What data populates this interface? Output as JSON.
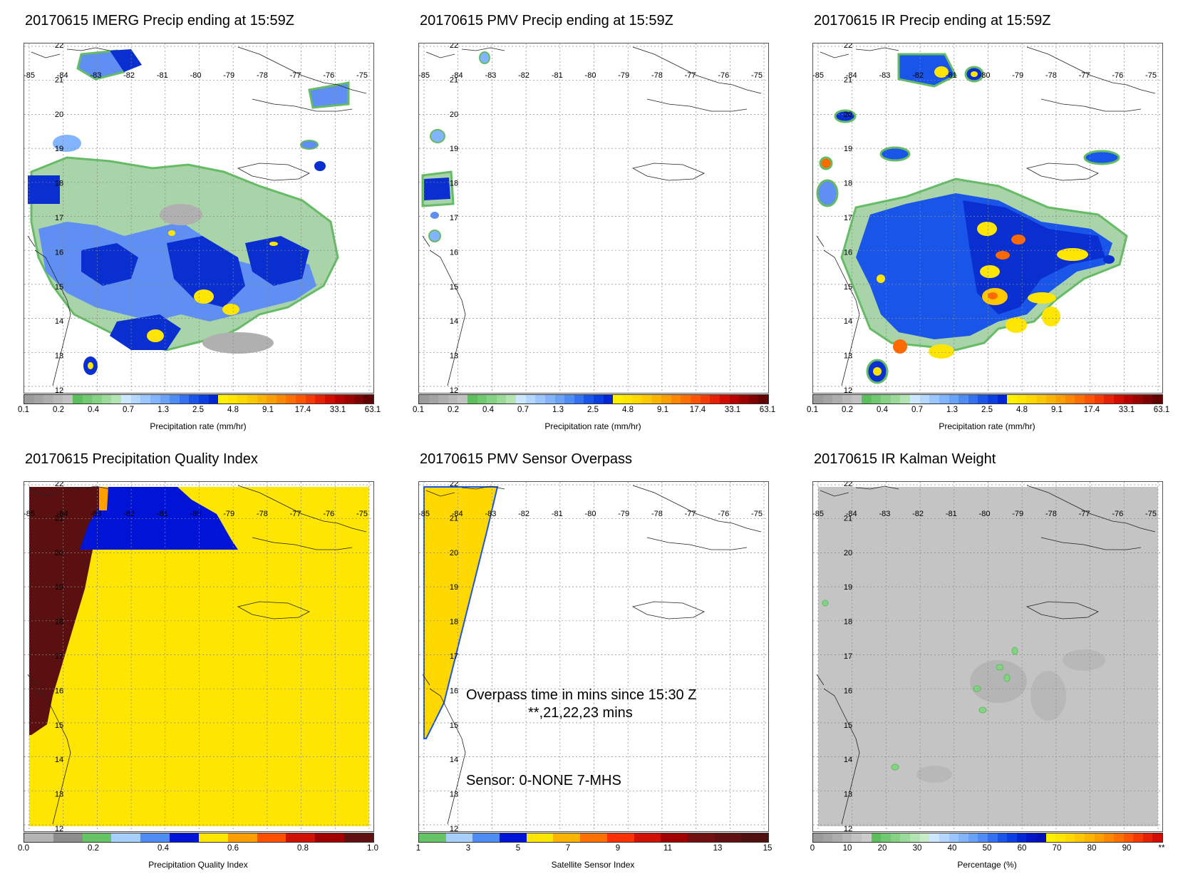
{
  "panels": [
    {
      "title": "20170615 IMERG Precip ending at 15:59Z",
      "colorbar_label": "Precipitation rate (mm/hr)",
      "ticks": [
        "0.1",
        "0.2",
        "0.4",
        "0.7",
        "1.3",
        "2.5",
        "4.8",
        "9.1",
        "17.4",
        "33.1",
        "63.1"
      ]
    },
    {
      "title": "20170615 PMV Precip ending at 15:59Z",
      "colorbar_label": "Precipitation rate (mm/hr)",
      "ticks": [
        "0.1",
        "0.2",
        "0.4",
        "0.7",
        "1.3",
        "2.5",
        "4.8",
        "9.1",
        "17.4",
        "33.1",
        "63.1"
      ]
    },
    {
      "title": "20170615 IR Precip ending at 15:59Z",
      "colorbar_label": "Precipitation rate (mm/hr)",
      "ticks": [
        "0.1",
        "0.2",
        "0.4",
        "0.7",
        "1.3",
        "2.5",
        "4.8",
        "9.1",
        "17.4",
        "33.1",
        "63.1"
      ]
    },
    {
      "title": "20170615 Precipitation Quality Index",
      "colorbar_label": "Precipitation Quality Index",
      "ticks": [
        "0.0",
        "0.2",
        "0.4",
        "0.6",
        "0.8",
        "1.0"
      ]
    },
    {
      "title": "20170615 PMV Sensor Overpass",
      "colorbar_label": "Satellite Sensor Index",
      "ticks": [
        "1",
        "3",
        "5",
        "7",
        "9",
        "11",
        "13",
        "15"
      ],
      "annotation_line1": "Overpass time in mins since 15:30 Z",
      "annotation_line2": "**,21,22,23 mins",
      "annotation_sensor": "Sensor:   0-NONE  7-MHS"
    },
    {
      "title": "20170615 IR Kalman Weight",
      "colorbar_label": "Percentage (%)",
      "ticks": [
        "0",
        "10",
        "20",
        "30",
        "40",
        "50",
        "60",
        "70",
        "80",
        "90",
        "**"
      ]
    }
  ],
  "axes": {
    "lon_labels": [
      "-85",
      "-84",
      "-83",
      "-82",
      "-81",
      "-80",
      "-79",
      "-78",
      "-77",
      "-76",
      "-75"
    ],
    "lat_labels": [
      "22",
      "21",
      "20",
      "19",
      "18",
      "17",
      "16",
      "15",
      "14",
      "13",
      "12"
    ]
  },
  "colorbars": {
    "precip": [
      "#9b9b9b",
      "#a3a3a3",
      "#adadad",
      "#b8b8b8",
      "#c2c2c2",
      "#5cbf5c",
      "#70c870",
      "#86d186",
      "#9cda9c",
      "#b4e3b4",
      "#cfe6ff",
      "#b5d6ff",
      "#9cc6ff",
      "#82b4ff",
      "#6aa2fb",
      "#4f8cf6",
      "#3470f0",
      "#1a55ea",
      "#0a3ee2",
      "#0025d4",
      "#fff000",
      "#ffe600",
      "#ffd800",
      "#ffc800",
      "#ffb400",
      "#ffa000",
      "#ff8800",
      "#ff7000",
      "#ff5400",
      "#f53a00",
      "#e62000",
      "#d20c00",
      "#b80000",
      "#9c0000",
      "#7e0000",
      "#600000"
    ],
    "quality": [
      "#b4b4b4",
      "#8c8c8c",
      "#66c466",
      "#a8d0ff",
      "#4f8cf6",
      "#0014d8",
      "#ffe600",
      "#ffa000",
      "#ff5000",
      "#d01000",
      "#a00000",
      "#601010"
    ],
    "sensor": [
      "#66c466",
      "#a8d0ff",
      "#4f8cf6",
      "#0014d8",
      "#ffe600",
      "#ffb400",
      "#ff7000",
      "#ff3000",
      "#d01000",
      "#a00000",
      "#701010",
      "#601010",
      "#501010"
    ],
    "kalman": [
      "#9b9b9b",
      "#a3a3a3",
      "#adadad",
      "#b8b8b8",
      "#c2c2c2",
      "#cccccc",
      "#5cbf5c",
      "#70c870",
      "#86d186",
      "#9cda9c",
      "#b4e3b4",
      "#c8ecc8",
      "#cfe6ff",
      "#b5d6ff",
      "#9cc6ff",
      "#82b4ff",
      "#6aa2fb",
      "#4f8cf6",
      "#3470f0",
      "#1a55ea",
      "#0a3ee2",
      "#0025d4",
      "#0014c8",
      "#0010b8",
      "#fff000",
      "#ffe600",
      "#ffd800",
      "#ffc800",
      "#ffb400",
      "#ffa000",
      "#ff8800",
      "#ff7000",
      "#ff5400",
      "#f53a00",
      "#e62000",
      "#d20c00"
    ]
  }
}
